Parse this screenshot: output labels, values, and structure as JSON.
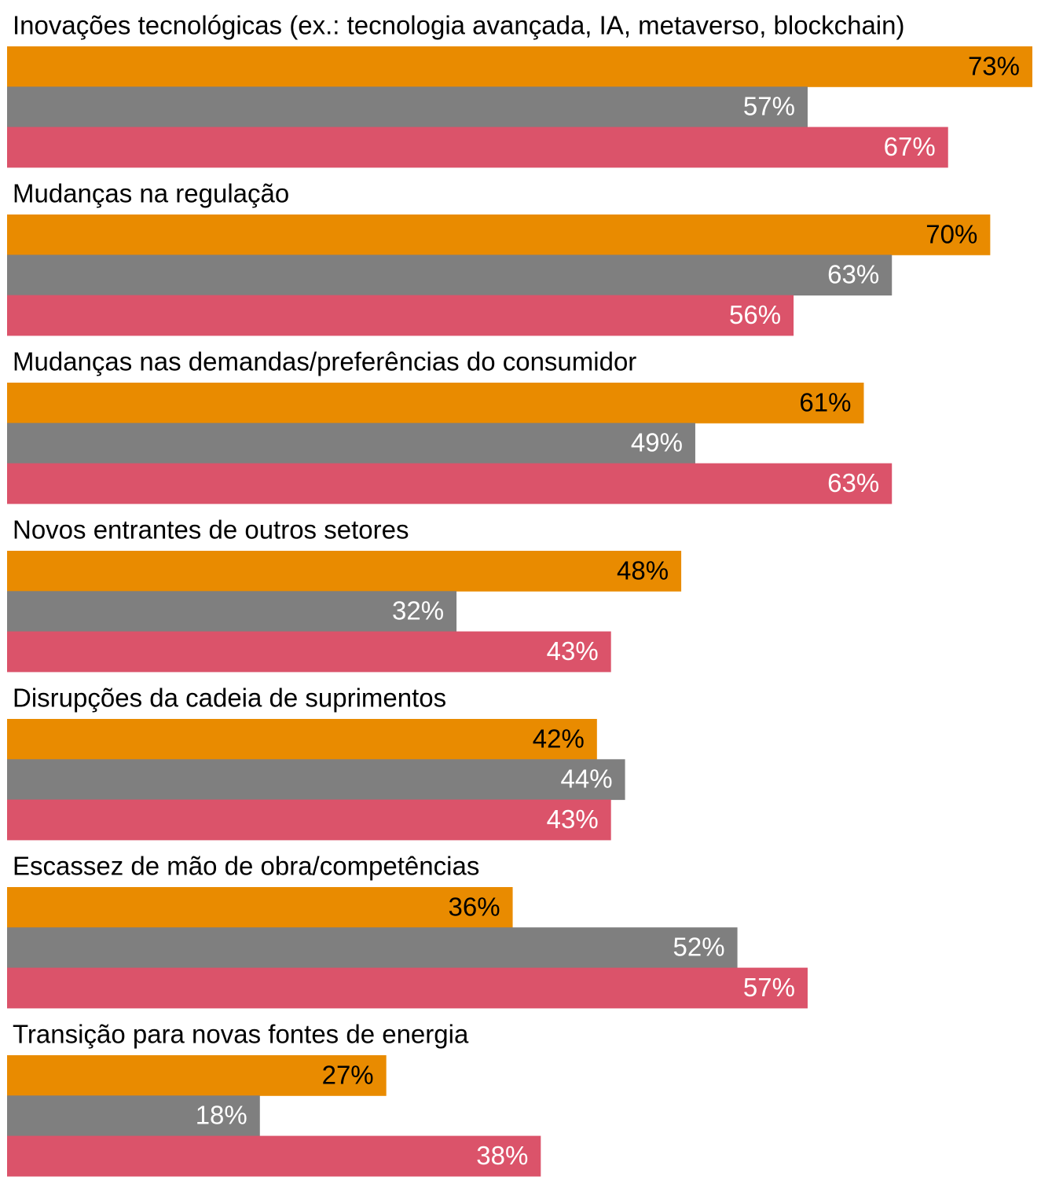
{
  "chart_data": {
    "type": "bar",
    "orientation": "horizontal",
    "categories": [
      "Inovações tecnológicas (ex.: tecnologia avançada, IA, metaverso, blockchain)",
      "Mudanças na regulação",
      "Mudanças nas demandas/preferências do consumidor",
      "Novos entrantes de outros setores",
      "Disrupções da cadeia de suprimentos",
      "Escassez de mão de obra/competências",
      "Transição para novas fontes de energia"
    ],
    "series": [
      {
        "color": "#E98B00",
        "label_color": "#000000",
        "values": [
          73,
          70,
          61,
          48,
          42,
          36,
          27
        ],
        "value_labels": [
          "73%",
          "70%",
          "61%",
          "48%",
          "42%",
          "36%",
          "27%"
        ]
      },
      {
        "color": "#7F7F7F",
        "label_color": "#ffffff",
        "values": [
          57,
          63,
          49,
          32,
          44,
          52,
          18
        ],
        "value_labels": [
          "57%",
          "63%",
          "49%",
          "32%",
          "44%",
          "52%",
          "18%"
        ]
      },
      {
        "color": "#DB536A",
        "label_color": "#ffffff",
        "values": [
          67,
          56,
          63,
          43,
          43,
          57,
          38
        ],
        "value_labels": [
          "67%",
          "56%",
          "63%",
          "43%",
          "43%",
          "57%",
          "38%"
        ]
      }
    ]
  }
}
